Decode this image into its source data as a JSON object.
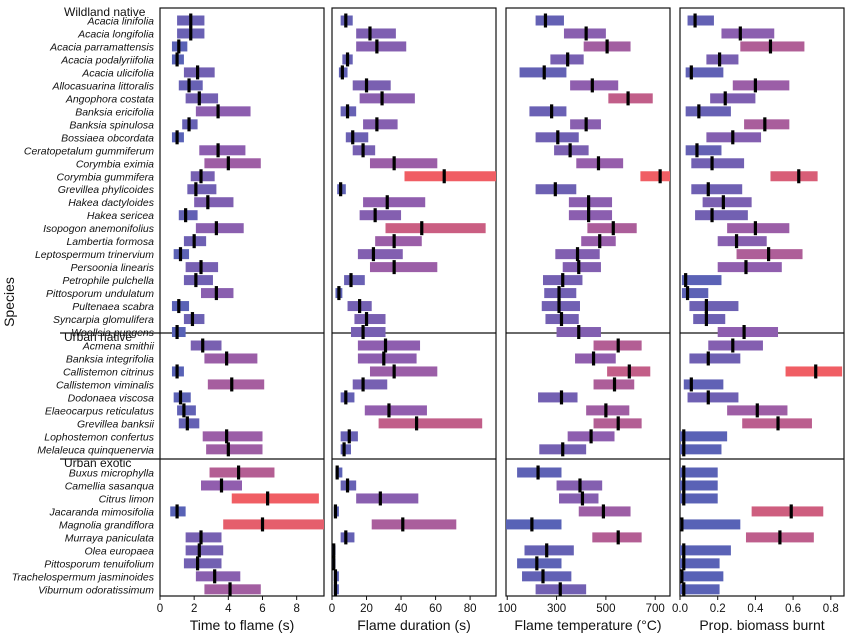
{
  "chart_data": {
    "type": "range-dot",
    "ylabel": "Species",
    "groups": [
      {
        "name": "Wildland native",
        "species": [
          "Acacia linifolia",
          "Acacia longifolia",
          "Acacia parramattensis",
          "Acacia podalyriifolia",
          "Acacia ulicifolia",
          "Allocasuarina littoralis",
          "Angophora costata",
          "Banksia ericifolia",
          "Banksia spinulosa",
          "Bossiaea obcordata",
          "Ceratopetalum gummiferum",
          "Corymbia eximia",
          "Corymbia gummifera",
          "Grevillea phylicoides",
          "Hakea dactyloides",
          "Hakea sericea",
          "Isopogon anemonifolius",
          "Lambertia formosa",
          "Leptospermum trinervium",
          "Persoonia linearis",
          "Petrophile pulchella",
          "Pittosporum undulatum",
          "Pultenaea scabra",
          "Syncarpia glomulifera",
          "Woollsia pungens"
        ]
      },
      {
        "name": "Urban native",
        "species": [
          "Acmena smithii",
          "Banksia integrifolia",
          "Callistemon citrinus",
          "Callistemon viminalis",
          "Dodonaea viscosa",
          "Elaeocarpus reticulatus",
          "Grevillea banksii",
          "Lophostemon confertus",
          "Melaleuca quinquenervia"
        ]
      },
      {
        "name": "Urban exotic",
        "species": [
          "Buxus microphylla",
          "Camellia sasanqua",
          "Citrus limon",
          "Jacaranda mimosifolia",
          "Magnolia grandiflora",
          "Murraya paniculata",
          "Olea europaea",
          "Pittosporum tenuifolium",
          "Trachelospermum jasminoides",
          "Viburnum odoratissimum"
        ]
      }
    ],
    "panels": [
      {
        "xlabel": "Time to flame (s)",
        "xlim": [
          0,
          9.6
        ],
        "ticks": [
          0,
          2,
          4,
          6,
          8
        ],
        "series": [
          [
            1.8,
            1.0,
            2.6
          ],
          [
            1.8,
            1.0,
            2.6
          ],
          [
            1.1,
            0.7,
            1.6
          ],
          [
            1.0,
            0.7,
            1.4
          ],
          [
            2.2,
            1.4,
            3.2
          ],
          [
            1.7,
            1.1,
            2.5
          ],
          [
            2.3,
            1.5,
            3.4
          ],
          [
            3.4,
            2.1,
            5.3
          ],
          [
            1.7,
            1.3,
            2.2
          ],
          [
            1.0,
            0.7,
            1.4
          ],
          [
            3.4,
            2.3,
            5.0
          ],
          [
            4.0,
            2.6,
            5.9
          ],
          [
            2.4,
            1.8,
            3.2
          ],
          [
            2.1,
            1.6,
            3.3
          ],
          [
            2.8,
            2.0,
            4.3
          ],
          [
            1.5,
            1.1,
            2.2
          ],
          [
            3.3,
            2.1,
            4.9
          ],
          [
            2.0,
            1.4,
            2.7
          ],
          [
            1.2,
            0.8,
            1.7
          ],
          [
            2.4,
            1.5,
            3.4
          ],
          [
            2.1,
            1.4,
            3.1
          ],
          [
            3.3,
            2.4,
            4.3
          ],
          [
            1.1,
            0.7,
            1.7
          ],
          [
            1.9,
            1.4,
            2.6
          ],
          [
            1.0,
            0.7,
            1.5
          ],
          [
            2.5,
            1.8,
            3.6
          ],
          [
            3.9,
            2.6,
            5.7
          ],
          [
            1.0,
            0.7,
            1.4
          ],
          [
            4.2,
            2.8,
            6.1
          ],
          [
            1.2,
            0.8,
            1.8
          ],
          [
            1.4,
            1.0,
            2.1
          ],
          [
            1.6,
            1.1,
            2.3
          ],
          [
            3.9,
            2.5,
            6.0
          ],
          [
            4.0,
            2.7,
            6.0
          ],
          [
            4.6,
            2.9,
            6.7
          ],
          [
            3.6,
            2.4,
            4.8
          ],
          [
            6.3,
            4.2,
            9.3
          ],
          [
            1.0,
            0.6,
            1.5
          ],
          [
            6.0,
            3.7,
            9.6
          ],
          [
            2.4,
            1.5,
            3.6
          ],
          [
            2.3,
            1.5,
            3.7
          ],
          [
            2.2,
            1.4,
            3.6
          ],
          [
            3.2,
            2.1,
            4.7
          ],
          [
            4.1,
            2.6,
            5.9
          ]
        ]
      },
      {
        "xlabel": "Flame duration (s)",
        "xlim": [
          0,
          95
        ],
        "ticks": [
          0,
          20,
          40,
          60,
          80
        ],
        "series": [
          [
            8,
            5,
            12
          ],
          [
            22,
            14,
            37
          ],
          [
            26,
            14,
            43
          ],
          [
            9,
            6,
            12
          ],
          [
            6,
            4,
            9
          ],
          [
            20,
            12,
            34
          ],
          [
            29,
            16,
            48
          ],
          [
            9,
            5,
            14
          ],
          [
            26,
            18,
            38
          ],
          [
            12,
            8,
            21
          ],
          [
            18,
            12,
            25
          ],
          [
            36,
            22,
            61
          ],
          [
            65,
            42,
            95
          ],
          [
            5,
            3,
            8
          ],
          [
            32,
            18,
            54
          ],
          [
            25,
            16,
            40
          ],
          [
            52,
            31,
            89
          ],
          [
            36,
            25,
            52
          ],
          [
            24,
            15,
            41
          ],
          [
            36,
            22,
            61
          ],
          [
            11,
            7,
            19
          ],
          [
            4,
            2,
            6
          ],
          [
            16,
            9,
            23
          ],
          [
            20,
            13,
            31
          ],
          [
            18,
            11,
            31
          ],
          [
            31,
            15,
            51
          ],
          [
            30,
            15,
            49
          ],
          [
            36,
            22,
            61
          ],
          [
            18,
            12,
            32
          ],
          [
            8,
            5,
            13
          ],
          [
            33,
            19,
            55
          ],
          [
            49,
            27,
            87
          ],
          [
            10,
            5,
            15
          ],
          [
            7,
            5,
            11
          ],
          [
            3,
            2,
            6
          ],
          [
            9,
            5,
            14
          ],
          [
            28,
            14,
            50
          ],
          [
            2,
            1,
            4
          ],
          [
            41,
            23,
            72
          ],
          [
            8,
            5,
            13
          ],
          [
            1,
            0,
            2
          ],
          [
            1,
            0,
            2
          ],
          [
            2,
            1,
            4
          ],
          [
            2,
            1,
            4
          ]
        ]
      },
      {
        "xlabel": "Flame temperature (°C)",
        "xlim": [
          95,
          760
        ],
        "ticks": [
          100,
          300,
          500,
          700
        ],
        "series": [
          [
            255,
            215,
            330
          ],
          [
            420,
            330,
            500
          ],
          [
            505,
            410,
            600
          ],
          [
            345,
            275,
            410
          ],
          [
            250,
            150,
            340
          ],
          [
            445,
            355,
            550
          ],
          [
            590,
            510,
            690
          ],
          [
            280,
            190,
            340
          ],
          [
            420,
            355,
            480
          ],
          [
            305,
            215,
            390
          ],
          [
            355,
            290,
            430
          ],
          [
            470,
            380,
            570
          ],
          [
            720,
            640,
            760
          ],
          [
            295,
            215,
            380
          ],
          [
            430,
            350,
            525
          ],
          [
            430,
            350,
            525
          ],
          [
            530,
            425,
            625
          ],
          [
            475,
            400,
            540
          ],
          [
            385,
            295,
            475
          ],
          [
            390,
            325,
            480
          ],
          [
            325,
            245,
            405
          ],
          [
            310,
            250,
            380
          ],
          [
            310,
            240,
            395
          ],
          [
            320,
            255,
            390
          ],
          [
            390,
            300,
            480
          ],
          [
            550,
            450,
            645
          ],
          [
            450,
            375,
            540
          ],
          [
            595,
            505,
            680
          ],
          [
            535,
            450,
            615
          ],
          [
            320,
            225,
            385
          ],
          [
            500,
            420,
            595
          ],
          [
            550,
            450,
            645
          ],
          [
            440,
            345,
            535
          ],
          [
            325,
            230,
            420
          ],
          [
            225,
            140,
            320
          ],
          [
            395,
            300,
            485
          ],
          [
            405,
            310,
            470
          ],
          [
            490,
            390,
            600
          ],
          [
            200,
            95,
            320
          ],
          [
            550,
            445,
            645
          ],
          [
            260,
            170,
            370
          ],
          [
            220,
            140,
            320
          ],
          [
            245,
            160,
            360
          ],
          [
            315,
            215,
            420
          ]
        ]
      },
      {
        "xlabel": "Prop. biomass burnt",
        "xlim": [
          0,
          0.87
        ],
        "ticks": [
          0.0,
          0.2,
          0.4,
          0.6,
          0.8
        ],
        "series": [
          [
            0.08,
            0.04,
            0.18
          ],
          [
            0.32,
            0.22,
            0.5
          ],
          [
            0.48,
            0.32,
            0.66
          ],
          [
            0.21,
            0.14,
            0.31
          ],
          [
            0.06,
            0.03,
            0.23
          ],
          [
            0.4,
            0.28,
            0.58
          ],
          [
            0.24,
            0.16,
            0.4
          ],
          [
            0.1,
            0.03,
            0.27
          ],
          [
            0.45,
            0.34,
            0.58
          ],
          [
            0.28,
            0.14,
            0.43
          ],
          [
            0.09,
            0.03,
            0.22
          ],
          [
            0.17,
            0.06,
            0.34
          ],
          [
            0.63,
            0.48,
            0.73
          ],
          [
            0.15,
            0.06,
            0.33
          ],
          [
            0.23,
            0.12,
            0.38
          ],
          [
            0.17,
            0.08,
            0.36
          ],
          [
            0.4,
            0.25,
            0.58
          ],
          [
            0.3,
            0.2,
            0.46
          ],
          [
            0.47,
            0.3,
            0.65
          ],
          [
            0.35,
            0.2,
            0.54
          ],
          [
            0.03,
            0.01,
            0.22
          ],
          [
            0.04,
            0.01,
            0.15
          ],
          [
            0.14,
            0.05,
            0.31
          ],
          [
            0.14,
            0.07,
            0.24
          ],
          [
            0.34,
            0.2,
            0.52
          ],
          [
            0.28,
            0.15,
            0.44
          ],
          [
            0.15,
            0.05,
            0.32
          ],
          [
            0.72,
            0.56,
            0.86
          ],
          [
            0.06,
            0.02,
            0.23
          ],
          [
            0.15,
            0.04,
            0.31
          ],
          [
            0.41,
            0.25,
            0.57
          ],
          [
            0.52,
            0.33,
            0.7
          ],
          [
            0.02,
            0.0,
            0.25
          ],
          [
            0.02,
            0.0,
            0.22
          ],
          [
            0.02,
            0.0,
            0.2
          ],
          [
            0.02,
            0.0,
            0.2
          ],
          [
            0.02,
            0.0,
            0.2
          ],
          [
            0.59,
            0.38,
            0.76
          ],
          [
            0.01,
            0.0,
            0.32
          ],
          [
            0.53,
            0.35,
            0.71
          ],
          [
            0.02,
            0.0,
            0.27
          ],
          [
            0.02,
            0.0,
            0.21
          ],
          [
            0.01,
            0.0,
            0.23
          ],
          [
            0.02,
            0.0,
            0.21
          ]
        ]
      }
    ]
  }
}
